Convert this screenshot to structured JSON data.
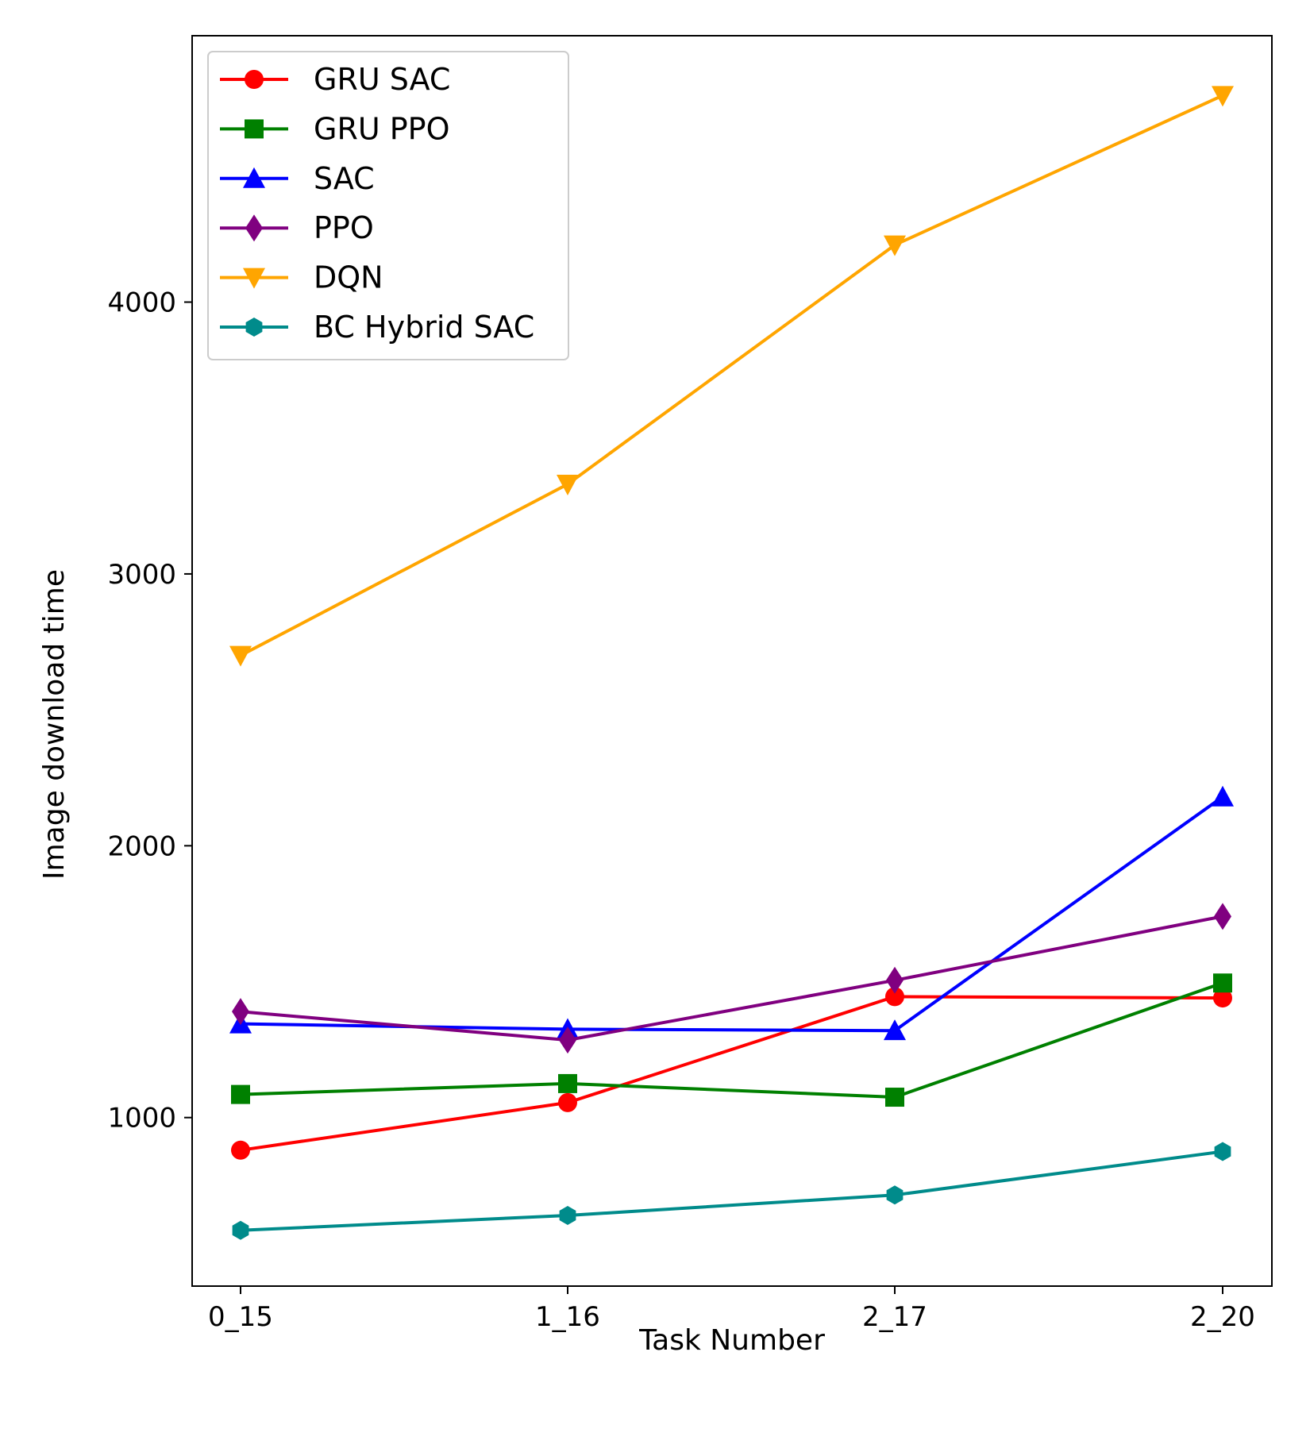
{
  "chart_data": {
    "type": "line",
    "title": "",
    "xlabel": "Task Number",
    "ylabel": "Image download time",
    "categories": [
      "0_15",
      "1_16",
      "2_17",
      "2_20"
    ],
    "ylim": [
      380,
      4980
    ],
    "yticks": [
      1000,
      2000,
      3000,
      4000
    ],
    "grid": false,
    "legend_position": "top-left",
    "series": [
      {
        "name": "GRU SAC",
        "color": "#ff0000",
        "marker": "circle",
        "values": [
          880,
          1055,
          1445,
          1440
        ]
      },
      {
        "name": "GRU PPO",
        "color": "#008000",
        "marker": "square",
        "values": [
          1085,
          1125,
          1075,
          1495
        ]
      },
      {
        "name": "SAC",
        "color": "#0000ff",
        "marker": "triangle-up",
        "values": [
          1345,
          1325,
          1320,
          2180
        ]
      },
      {
        "name": "PPO",
        "color": "#800080",
        "marker": "thin-diamond",
        "values": [
          1390,
          1285,
          1505,
          1740
        ]
      },
      {
        "name": "DQN",
        "color": "#ffa500",
        "marker": "triangle-down",
        "values": [
          2700,
          3330,
          4210,
          4760
        ]
      },
      {
        "name": "BC Hybrid SAC",
        "color": "#008b8b",
        "marker": "hexagon",
        "values": [
          585,
          640,
          715,
          875
        ]
      }
    ]
  }
}
